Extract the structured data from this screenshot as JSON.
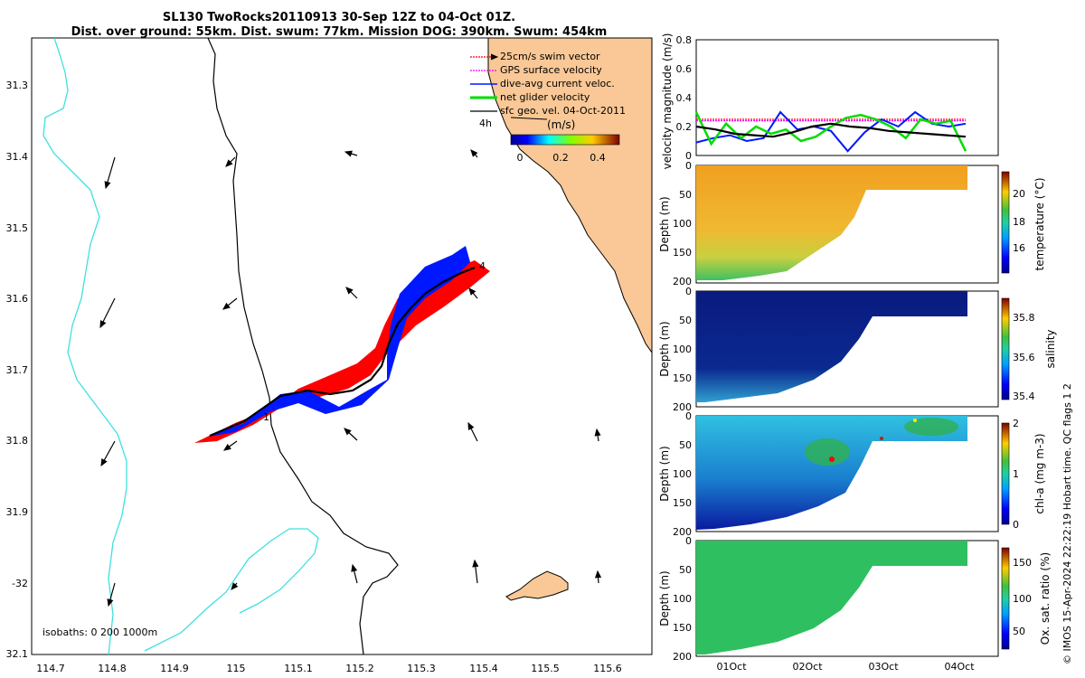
{
  "title": {
    "line1": "SL130 TwoRocks20110913 30-Sep 12Z to 04-Oct 01Z.",
    "line2": "Dist. over ground: 55km. Dist. swum: 77km. Mission DOG: 390km. Swum: 454km"
  },
  "map": {
    "lon_ticks": [
      "114.7",
      "114.8",
      "114.9",
      "115",
      "115.1",
      "115.2",
      "115.3",
      "115.4",
      "115.5",
      "115.6"
    ],
    "lat_ticks": [
      "31.3",
      "31.4",
      "31.5",
      "31.6",
      "31.7",
      "31.8",
      "31.9",
      "-32",
      "32.1"
    ],
    "isobath_label": "isobaths: 0   200  1000m",
    "legend": [
      "25cm/s swim vector",
      "GPS surface velocity",
      "dive-avg current veloc.",
      "net glider velocity",
      "sfc geo. vel. 04-Oct-2011"
    ],
    "scale_label": "4h",
    "colorbar": {
      "label": "(m/s)",
      "ticks": [
        "0",
        "0.2",
        "0.4"
      ]
    },
    "markers": [
      "1",
      "4"
    ],
    "colors": {
      "land": "#f9c896",
      "coast200": "#40e0e0",
      "track_red": "#ff0000",
      "track_blue": "#0018ff"
    }
  },
  "chart_data": [
    {
      "type": "line",
      "ylabel": "velocity magnitude (m/s)",
      "ylim": [
        0,
        0.8
      ],
      "yticks": [
        "0",
        "0.2",
        "0.4",
        "0.6",
        "0.8"
      ],
      "series_colors": [
        "#ff0000",
        "#ff00ff",
        "#0018ff",
        "#00dd00",
        "#000000"
      ],
      "series": [
        {
          "values": [
            0.25,
            0.25,
            0.25,
            0.25,
            0.25,
            0.25,
            0.25,
            0.25,
            0.25
          ]
        },
        {
          "values": [
            0.24,
            0.24,
            0.24,
            0.24,
            0.24,
            0.24,
            0.24,
            0.24,
            0.24
          ]
        },
        {
          "values": [
            0.09,
            0.12,
            0.14,
            0.1,
            0.12,
            0.3,
            0.18,
            0.2,
            0.17,
            0.03,
            0.16,
            0.25,
            0.2,
            0.3,
            0.22,
            0.2,
            0.22
          ]
        },
        {
          "values": [
            0.3,
            0.08,
            0.22,
            0.12,
            0.2,
            0.15,
            0.18,
            0.1,
            0.13,
            0.2,
            0.26,
            0.28,
            0.25,
            0.2,
            0.12,
            0.25,
            0.22,
            0.24,
            0.03
          ]
        },
        {
          "values": [
            0.2,
            0.18,
            0.15,
            0.14,
            0.13,
            0.16,
            0.2,
            0.22,
            0.2,
            0.19,
            0.17,
            0.16,
            0.15,
            0.14,
            0.13
          ]
        }
      ]
    },
    {
      "type": "heatmap",
      "ylabel": "Depth (m)",
      "yticks": [
        "0",
        "50",
        "100",
        "150",
        "200"
      ],
      "colorbar_label": "temperature (°C)",
      "colorbar_ticks": [
        "16",
        "18",
        "20"
      ]
    },
    {
      "type": "heatmap",
      "ylabel": "Depth (m)",
      "yticks": [
        "0",
        "50",
        "100",
        "150",
        "200"
      ],
      "colorbar_label": "salinity",
      "colorbar_ticks": [
        "35.4",
        "35.6",
        "35.8"
      ]
    },
    {
      "type": "heatmap",
      "ylabel": "Depth (m)",
      "yticks": [
        "0",
        "50",
        "100",
        "150",
        "200"
      ],
      "colorbar_label": "chl-a (mg m-3)",
      "colorbar_ticks": [
        "0",
        "1",
        "2"
      ]
    },
    {
      "type": "heatmap",
      "ylabel": "Depth (m)",
      "yticks": [
        "0",
        "50",
        "100",
        "150",
        "200"
      ],
      "colorbar_label": "Ox. sat. ratio (%)",
      "colorbar_ticks": [
        "50",
        "100",
        "150"
      ],
      "xticks": [
        "01Oct",
        "02Oct",
        "03Oct",
        "04Oct"
      ]
    }
  ],
  "footer": "© IMOS 15-Apr-2024 22:22:19 Hobart time. QC flags 1  2"
}
